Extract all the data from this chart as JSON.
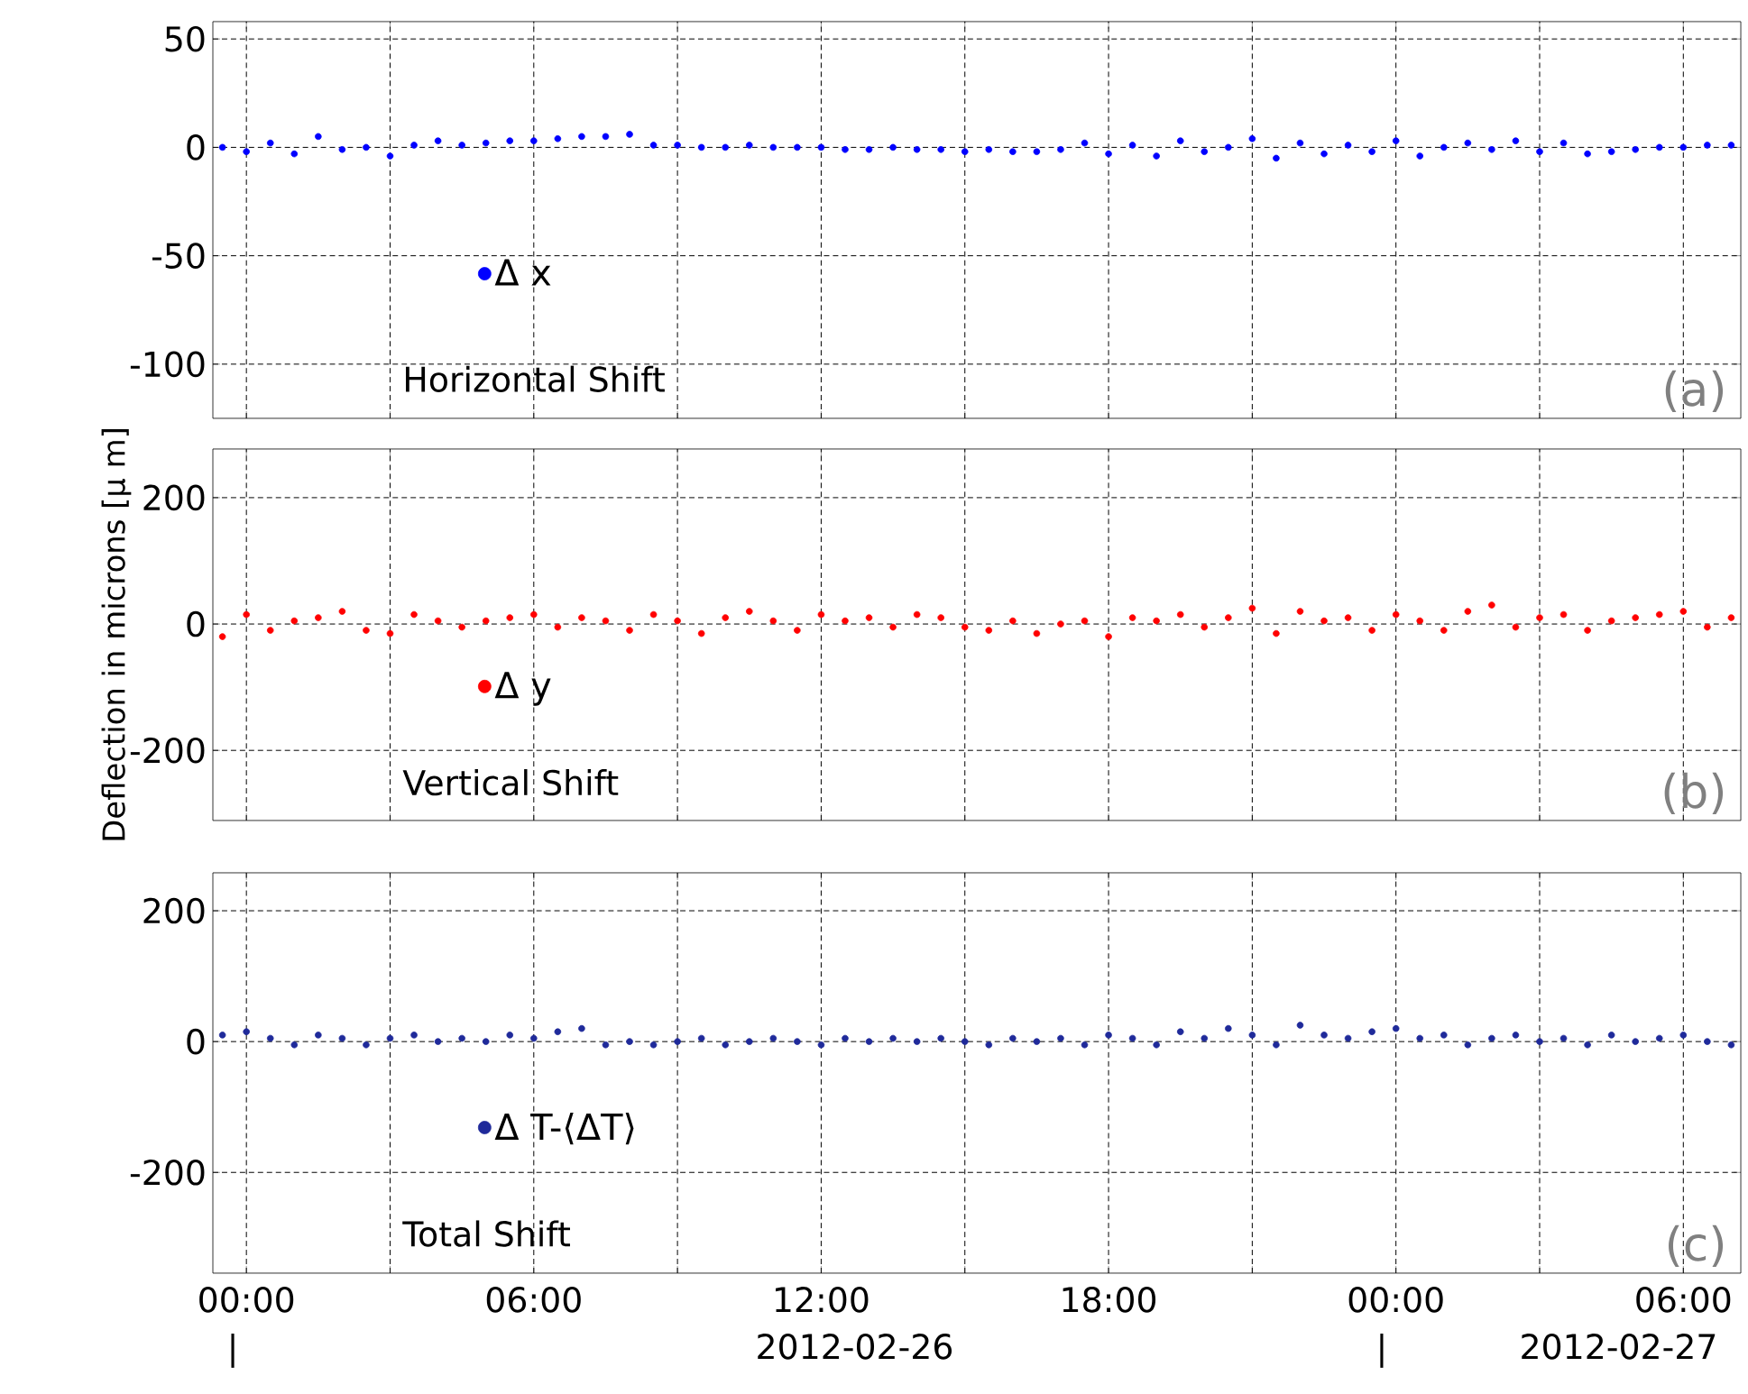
{
  "chart_data": [
    {
      "type": "scatter",
      "x": [
        "2012-02-25T23:30",
        "2012-02-26T00:00",
        "2012-02-26T00:30",
        "2012-02-26T01:00",
        "2012-02-26T01:30",
        "2012-02-26T02:00",
        "2012-02-26T02:30",
        "2012-02-26T03:00",
        "2012-02-26T03:30",
        "2012-02-26T04:00",
        "2012-02-26T04:30",
        "2012-02-26T05:00",
        "2012-02-26T05:30",
        "2012-02-26T06:00",
        "2012-02-26T06:30",
        "2012-02-26T07:00",
        "2012-02-26T07:30",
        "2012-02-26T08:00",
        "2012-02-26T08:30",
        "2012-02-26T09:00",
        "2012-02-26T09:30",
        "2012-02-26T10:00",
        "2012-02-26T10:30",
        "2012-02-26T11:00",
        "2012-02-26T11:30",
        "2012-02-26T12:00",
        "2012-02-26T12:30",
        "2012-02-26T13:00",
        "2012-02-26T13:30",
        "2012-02-26T14:00",
        "2012-02-26T14:30",
        "2012-02-26T15:00",
        "2012-02-26T15:30",
        "2012-02-26T16:00",
        "2012-02-26T16:30",
        "2012-02-26T17:00",
        "2012-02-26T17:30",
        "2012-02-26T18:00",
        "2012-02-26T18:30",
        "2012-02-26T19:00",
        "2012-02-26T19:30",
        "2012-02-26T20:00",
        "2012-02-26T20:30",
        "2012-02-26T21:00",
        "2012-02-26T21:30",
        "2012-02-26T22:00",
        "2012-02-26T22:30",
        "2012-02-26T23:00",
        "2012-02-26T23:30",
        "2012-02-27T00:00",
        "2012-02-27T00:30",
        "2012-02-27T01:00",
        "2012-02-27T01:30",
        "2012-02-27T02:00",
        "2012-02-27T02:30",
        "2012-02-27T03:00",
        "2012-02-27T03:30",
        "2012-02-27T04:00",
        "2012-02-27T04:30",
        "2012-02-27T05:00",
        "2012-02-27T05:30",
        "2012-02-27T06:00",
        "2012-02-27T06:30",
        "2012-02-27T07:00"
      ],
      "series": [
        {
          "name": "Δ x",
          "color": "#0000ff",
          "values": [
            0,
            -2,
            2,
            -3,
            5,
            -1,
            0,
            -4,
            1,
            3,
            1,
            2,
            3,
            3,
            4,
            5,
            5,
            6,
            1,
            1,
            0,
            0,
            1,
            0,
            0,
            0,
            -1,
            -1,
            0,
            -1,
            -1,
            -2,
            -1,
            -2,
            -2,
            -1,
            2,
            -3,
            1,
            -4,
            3,
            -2,
            0,
            4,
            -5,
            2,
            -3,
            1,
            -2,
            3,
            -4,
            0,
            2,
            -1,
            3,
            -2,
            2,
            -3,
            -2,
            -1,
            0,
            0,
            1,
            1
          ]
        }
      ],
      "xlim": [
        "2012-02-25T23:18",
        "2012-02-27T07:12"
      ],
      "ylim": [
        -125,
        58
      ],
      "xticks": [
        {
          "value": "2012-02-26T00:00",
          "label": null
        },
        {
          "value": "2012-02-26T03:00",
          "label": null
        },
        {
          "value": "2012-02-26T06:00",
          "label": null
        },
        {
          "value": "2012-02-26T09:00",
          "label": null
        },
        {
          "value": "2012-02-26T12:00",
          "label": null
        },
        {
          "value": "2012-02-26T15:00",
          "label": null
        },
        {
          "value": "2012-02-26T18:00",
          "label": null
        },
        {
          "value": "2012-02-26T21:00",
          "label": null
        },
        {
          "value": "2012-02-27T00:00",
          "label": null
        },
        {
          "value": "2012-02-27T03:00",
          "label": null
        },
        {
          "value": "2012-02-27T06:00",
          "label": null
        }
      ],
      "yticks": [
        -100,
        -50,
        0,
        50
      ],
      "grid": true,
      "legend": "bottom left",
      "tick_labels": "y",
      "annotations": [
        "Horizontal Shift",
        "(a)"
      ]
    },
    {
      "type": "scatter",
      "x": [
        "2012-02-25T23:30",
        "2012-02-26T00:00",
        "2012-02-26T00:30",
        "2012-02-26T01:00",
        "2012-02-26T01:30",
        "2012-02-26T02:00",
        "2012-02-26T02:30",
        "2012-02-26T03:00",
        "2012-02-26T03:30",
        "2012-02-26T04:00",
        "2012-02-26T04:30",
        "2012-02-26T05:00",
        "2012-02-26T05:30",
        "2012-02-26T06:00",
        "2012-02-26T06:30",
        "2012-02-26T07:00",
        "2012-02-26T07:30",
        "2012-02-26T08:00",
        "2012-02-26T08:30",
        "2012-02-26T09:00",
        "2012-02-26T09:30",
        "2012-02-26T10:00",
        "2012-02-26T10:30",
        "2012-02-26T11:00",
        "2012-02-26T11:30",
        "2012-02-26T12:00",
        "2012-02-26T12:30",
        "2012-02-26T13:00",
        "2012-02-26T13:30",
        "2012-02-26T14:00",
        "2012-02-26T14:30",
        "2012-02-26T15:00",
        "2012-02-26T15:30",
        "2012-02-26T16:00",
        "2012-02-26T16:30",
        "2012-02-26T17:00",
        "2012-02-26T17:30",
        "2012-02-26T18:00",
        "2012-02-26T18:30",
        "2012-02-26T19:00",
        "2012-02-26T19:30",
        "2012-02-26T20:00",
        "2012-02-26T20:30",
        "2012-02-26T21:00",
        "2012-02-26T21:30",
        "2012-02-26T22:00",
        "2012-02-26T22:30",
        "2012-02-26T23:00",
        "2012-02-26T23:30",
        "2012-02-27T00:00",
        "2012-02-27T00:30",
        "2012-02-27T01:00",
        "2012-02-27T01:30",
        "2012-02-27T02:00",
        "2012-02-27T02:30",
        "2012-02-27T03:00",
        "2012-02-27T03:30",
        "2012-02-27T04:00",
        "2012-02-27T04:30",
        "2012-02-27T05:00",
        "2012-02-27T05:30",
        "2012-02-27T06:00",
        "2012-02-27T06:30",
        "2012-02-27T07:00"
      ],
      "series": [
        {
          "name": "Δ y",
          "color": "#ff0000",
          "values": [
            -20,
            15,
            -10,
            5,
            10,
            20,
            -10,
            -15,
            15,
            5,
            -5,
            5,
            10,
            15,
            -5,
            10,
            5,
            -10,
            15,
            5,
            -15,
            10,
            20,
            5,
            -10,
            15,
            5,
            10,
            -5,
            15,
            10,
            -5,
            -10,
            5,
            -15,
            0,
            5,
            -20,
            10,
            5,
            15,
            -5,
            10,
            25,
            -15,
            20,
            5,
            10,
            -10,
            15,
            5,
            -10,
            20,
            30,
            -5,
            10,
            15,
            -10,
            5,
            10,
            15,
            20,
            -5,
            10
          ]
        }
      ],
      "xlim": [
        "2012-02-25T23:18",
        "2012-02-27T07:12"
      ],
      "ylim": [
        -311,
        277
      ],
      "xticks": [
        {
          "value": "2012-02-26T00:00",
          "label": null
        },
        {
          "value": "2012-02-26T03:00",
          "label": null
        },
        {
          "value": "2012-02-26T06:00",
          "label": null
        },
        {
          "value": "2012-02-26T09:00",
          "label": null
        },
        {
          "value": "2012-02-26T12:00",
          "label": null
        },
        {
          "value": "2012-02-26T15:00",
          "label": null
        },
        {
          "value": "2012-02-26T18:00",
          "label": null
        },
        {
          "value": "2012-02-26T21:00",
          "label": null
        },
        {
          "value": "2012-02-27T00:00",
          "label": null
        },
        {
          "value": "2012-02-27T03:00",
          "label": null
        },
        {
          "value": "2012-02-27T06:00",
          "label": null
        }
      ],
      "yticks": [
        -200,
        0,
        200
      ],
      "grid": true,
      "legend": "bottom left",
      "tick_labels": "y",
      "ylabel": "Deflection in microns [μ m]",
      "annotations": [
        "Vertical Shift",
        "(b)"
      ]
    },
    {
      "type": "scatter",
      "x": [
        "2012-02-25T23:30",
        "2012-02-26T00:00",
        "2012-02-26T00:30",
        "2012-02-26T01:00",
        "2012-02-26T01:30",
        "2012-02-26T02:00",
        "2012-02-26T02:30",
        "2012-02-26T03:00",
        "2012-02-26T03:30",
        "2012-02-26T04:00",
        "2012-02-26T04:30",
        "2012-02-26T05:00",
        "2012-02-26T05:30",
        "2012-02-26T06:00",
        "2012-02-26T06:30",
        "2012-02-26T07:00",
        "2012-02-26T07:30",
        "2012-02-26T08:00",
        "2012-02-26T08:30",
        "2012-02-26T09:00",
        "2012-02-26T09:30",
        "2012-02-26T10:00",
        "2012-02-26T10:30",
        "2012-02-26T11:00",
        "2012-02-26T11:30",
        "2012-02-26T12:00",
        "2012-02-26T12:30",
        "2012-02-26T13:00",
        "2012-02-26T13:30",
        "2012-02-26T14:00",
        "2012-02-26T14:30",
        "2012-02-26T15:00",
        "2012-02-26T15:30",
        "2012-02-26T16:00",
        "2012-02-26T16:30",
        "2012-02-26T17:00",
        "2012-02-26T17:30",
        "2012-02-26T18:00",
        "2012-02-26T18:30",
        "2012-02-26T19:00",
        "2012-02-26T19:30",
        "2012-02-26T20:00",
        "2012-02-26T20:30",
        "2012-02-26T21:00",
        "2012-02-26T21:30",
        "2012-02-26T22:00",
        "2012-02-26T22:30",
        "2012-02-26T23:00",
        "2012-02-26T23:30",
        "2012-02-27T00:00",
        "2012-02-27T00:30",
        "2012-02-27T01:00",
        "2012-02-27T01:30",
        "2012-02-27T02:00",
        "2012-02-27T02:30",
        "2012-02-27T03:00",
        "2012-02-27T03:30",
        "2012-02-27T04:00",
        "2012-02-27T04:30",
        "2012-02-27T05:00",
        "2012-02-27T05:30",
        "2012-02-27T06:00",
        "2012-02-27T06:30",
        "2012-02-27T07:00"
      ],
      "series": [
        {
          "name": "Δ T-⟨ΔT⟩",
          "color": "#1f2a9a",
          "values": [
            10,
            15,
            5,
            -5,
            10,
            5,
            -5,
            5,
            10,
            0,
            5,
            0,
            10,
            5,
            15,
            20,
            -5,
            0,
            -5,
            0,
            5,
            -5,
            0,
            5,
            0,
            -5,
            5,
            0,
            5,
            0,
            5,
            0,
            -5,
            5,
            0,
            5,
            -5,
            10,
            5,
            -5,
            15,
            5,
            20,
            10,
            -5,
            25,
            10,
            5,
            15,
            20,
            5,
            10,
            -5,
            5,
            10,
            0,
            5,
            -5,
            10,
            0,
            5,
            10,
            0,
            -5
          ]
        }
      ],
      "xlim": [
        "2012-02-25T23:18",
        "2012-02-27T07:12"
      ],
      "ylim": [
        -354,
        258
      ],
      "xticks": [
        {
          "value": "2012-02-26T00:00",
          "label": "00:00"
        },
        {
          "value": "2012-02-26T03:00",
          "label": null
        },
        {
          "value": "2012-02-26T06:00",
          "label": "06:00"
        },
        {
          "value": "2012-02-26T09:00",
          "label": null
        },
        {
          "value": "2012-02-26T12:00",
          "label": "12:00"
        },
        {
          "value": "2012-02-26T15:00",
          "label": null
        },
        {
          "value": "2012-02-26T18:00",
          "label": "18:00"
        },
        {
          "value": "2012-02-26T21:00",
          "label": null
        },
        {
          "value": "2012-02-27T00:00",
          "label": "00:00"
        },
        {
          "value": "2012-02-27T03:00",
          "label": null
        },
        {
          "value": "2012-02-27T06:00",
          "label": "06:00"
        }
      ],
      "yticks": [
        -200,
        0,
        200
      ],
      "grid": true,
      "legend": "bottom left",
      "annotations": [
        "Total Shift",
        "(c)",
        "|",
        "2012-02-26",
        "|",
        "2012-02-27"
      ]
    }
  ]
}
